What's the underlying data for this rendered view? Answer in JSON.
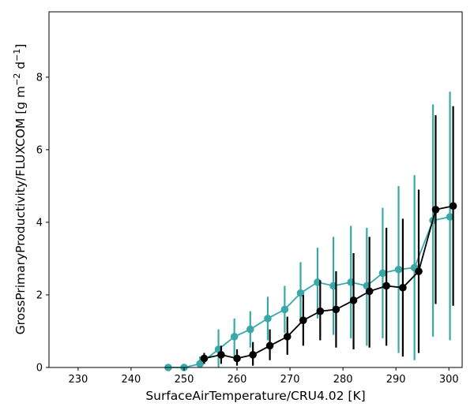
{
  "chart_data": {
    "type": "line",
    "xlabel": "SurfaceAirTemperature/CRU4.02 [K]",
    "ylabel_parts": {
      "main": "GrossPrimaryProductivity/FLUXCOM [g m",
      "exp1": "−2",
      "mid": " d",
      "exp2": "−1",
      "end": "]"
    },
    "xlim": [
      224.5,
      302.5
    ],
    "ylim": [
      0,
      9.8
    ],
    "x_ticks": [
      230,
      240,
      250,
      260,
      270,
      280,
      290,
      300
    ],
    "y_ticks": [
      0,
      2,
      4,
      6,
      8
    ],
    "grid": false,
    "legend": "none",
    "series": [
      {
        "color": "#3aa8a8",
        "points": [
          {
            "x": 247.0,
            "y": 0.0,
            "lo": 0.0,
            "hi": 0.0
          },
          {
            "x": 250.0,
            "y": 0.0,
            "lo": 0.0,
            "hi": 0.0
          },
          {
            "x": 253.0,
            "y": 0.1,
            "lo": 0.0,
            "hi": 0.3
          },
          {
            "x": 256.5,
            "y": 0.5,
            "lo": 0.0,
            "hi": 1.05
          },
          {
            "x": 259.5,
            "y": 0.85,
            "lo": 0.3,
            "hi": 1.35
          },
          {
            "x": 262.5,
            "y": 1.05,
            "lo": 0.55,
            "hi": 1.55
          },
          {
            "x": 265.8,
            "y": 1.35,
            "lo": 0.75,
            "hi": 1.95
          },
          {
            "x": 269.0,
            "y": 1.6,
            "lo": 0.95,
            "hi": 2.25
          },
          {
            "x": 272.0,
            "y": 2.05,
            "lo": 1.2,
            "hi": 2.9
          },
          {
            "x": 275.2,
            "y": 2.35,
            "lo": 1.35,
            "hi": 3.3
          },
          {
            "x": 278.2,
            "y": 2.25,
            "lo": 0.9,
            "hi": 3.6
          },
          {
            "x": 281.5,
            "y": 2.35,
            "lo": 0.8,
            "hi": 3.9
          },
          {
            "x": 284.5,
            "y": 2.25,
            "lo": 0.6,
            "hi": 3.85
          },
          {
            "x": 287.5,
            "y": 2.6,
            "lo": 0.8,
            "hi": 4.4
          },
          {
            "x": 290.5,
            "y": 2.7,
            "lo": 0.4,
            "hi": 5.0
          },
          {
            "x": 293.5,
            "y": 2.75,
            "lo": 0.2,
            "hi": 5.3
          },
          {
            "x": 297.0,
            "y": 4.05,
            "lo": 0.85,
            "hi": 7.25
          },
          {
            "x": 300.2,
            "y": 4.15,
            "lo": 0.75,
            "hi": 7.6
          }
        ]
      },
      {
        "color": "#000000",
        "points": [
          {
            "x": 253.8,
            "y": 0.25,
            "lo": 0.1,
            "hi": 0.4
          },
          {
            "x": 257.0,
            "y": 0.35,
            "lo": 0.1,
            "hi": 0.6
          },
          {
            "x": 260.0,
            "y": 0.25,
            "lo": 0.05,
            "hi": 0.5
          },
          {
            "x": 263.0,
            "y": 0.35,
            "lo": 0.05,
            "hi": 0.7
          },
          {
            "x": 266.2,
            "y": 0.6,
            "lo": 0.2,
            "hi": 1.05
          },
          {
            "x": 269.5,
            "y": 0.85,
            "lo": 0.35,
            "hi": 1.4
          },
          {
            "x": 272.5,
            "y": 1.3,
            "lo": 0.6,
            "hi": 2.0
          },
          {
            "x": 275.7,
            "y": 1.55,
            "lo": 0.75,
            "hi": 2.4
          },
          {
            "x": 278.7,
            "y": 1.6,
            "lo": 0.55,
            "hi": 2.65
          },
          {
            "x": 282.0,
            "y": 1.85,
            "lo": 0.5,
            "hi": 3.15
          },
          {
            "x": 285.0,
            "y": 2.1,
            "lo": 0.55,
            "hi": 3.6
          },
          {
            "x": 288.2,
            "y": 2.25,
            "lo": 0.6,
            "hi": 3.85
          },
          {
            "x": 291.3,
            "y": 2.2,
            "lo": 0.3,
            "hi": 4.1
          },
          {
            "x": 294.3,
            "y": 2.65,
            "lo": 0.4,
            "hi": 4.9
          },
          {
            "x": 297.5,
            "y": 4.35,
            "lo": 1.75,
            "hi": 6.95
          },
          {
            "x": 300.8,
            "y": 4.45,
            "lo": 1.7,
            "hi": 7.2
          }
        ]
      }
    ]
  }
}
